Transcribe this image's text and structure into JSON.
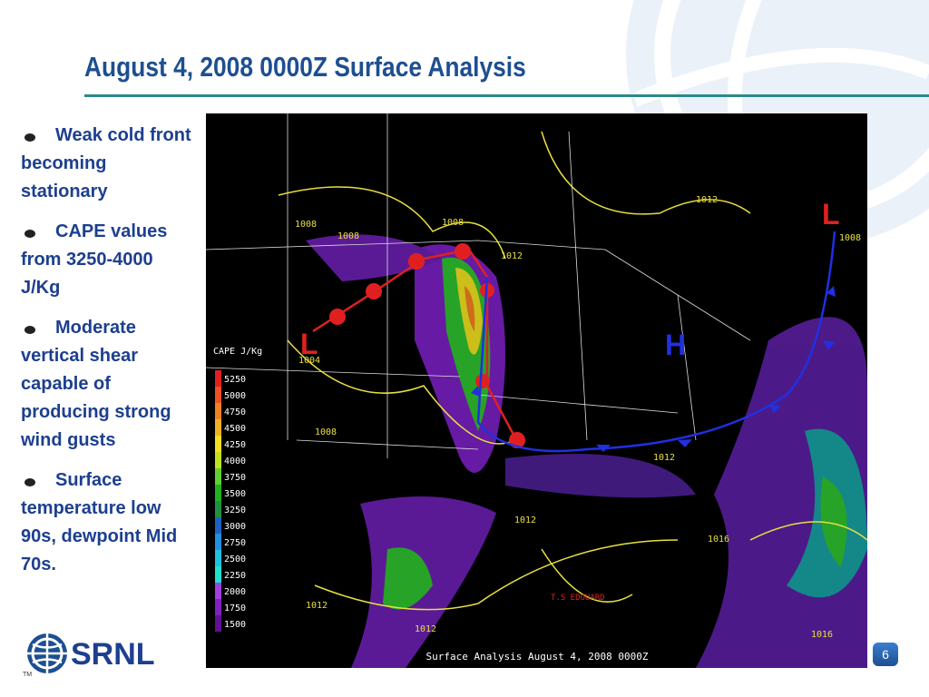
{
  "header": {
    "title": "August 4, 2008 0000Z Surface Analysis"
  },
  "bullets": [
    "Weak cold front becoming stationary",
    "CAPE values from 3250-4000 J/Kg",
    "Moderate vertical shear capable of producing strong wind gusts",
    "Surface temperature low 90s, dewpoint Mid 70s."
  ],
  "map": {
    "legend_title": "CAPE J/Kg",
    "legend_labels": [
      "5250",
      "5000",
      "4750",
      "4500",
      "4250",
      "4000",
      "3750",
      "3500",
      "3250",
      "3000",
      "2750",
      "2500",
      "2250",
      "2000",
      "1750",
      "1500"
    ],
    "pressure_labels": [
      "1008",
      "1008",
      "1008",
      "1012",
      "1012",
      "1008",
      "1004",
      "1008",
      "1012",
      "1012",
      "1016",
      "1012",
      "1012",
      "1016"
    ],
    "system_labels": [
      "L",
      "L",
      "H"
    ],
    "storm_label": "T.S EDOUARD",
    "caption": "Surface Analysis August 4, 2008 0000Z"
  },
  "footer": {
    "logo": "SRNL",
    "trademark": "TM",
    "page_number": "6"
  }
}
